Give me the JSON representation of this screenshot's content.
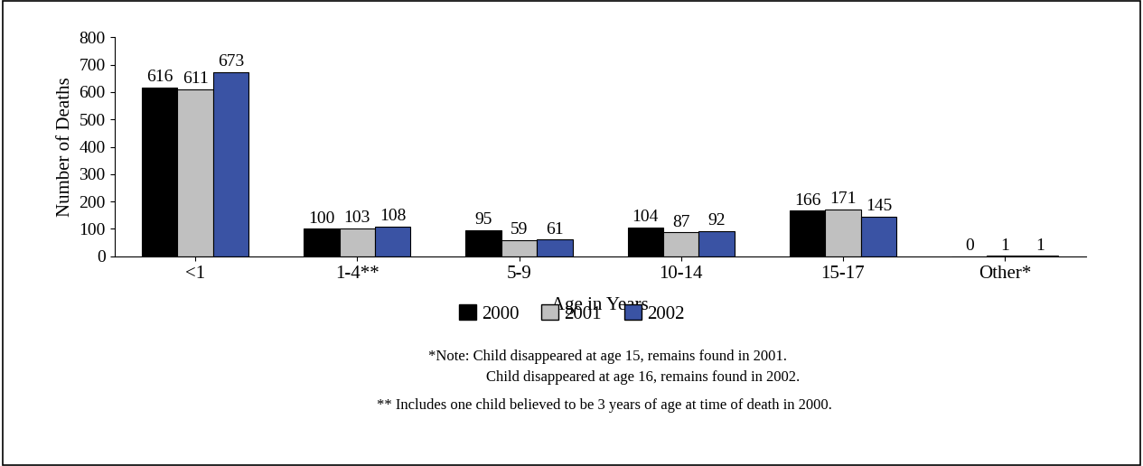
{
  "chart_data": {
    "type": "bar",
    "x_label": "Age in Years",
    "y_label": "Number of Deaths",
    "categories": [
      "<1",
      "1-4**",
      "5-9",
      "10-14",
      "15-17",
      "Other*"
    ],
    "series": [
      {
        "name": "2000",
        "color": "#000000",
        "values": [
          616,
          100,
          95,
          104,
          166,
          0
        ]
      },
      {
        "name": "2001",
        "color": "#c0c0c0",
        "values": [
          611,
          103,
          59,
          87,
          171,
          1
        ]
      },
      {
        "name": "2002",
        "color": "#3a53a4",
        "values": [
          673,
          108,
          61,
          92,
          145,
          1
        ]
      }
    ],
    "ylim": [
      0,
      800
    ],
    "yticks": [
      0,
      100,
      200,
      300,
      400,
      500,
      600,
      700,
      800
    ],
    "grid": false,
    "legend": "lower center",
    "data_labels": true,
    "annotations": [
      "*Note: Child disappeared at age 15, remains found in 2001.",
      "Child disappeared at age 16, remains found in 2002.",
      "** Includes one child believed to be 3 years of age at time of death in 2000."
    ]
  }
}
